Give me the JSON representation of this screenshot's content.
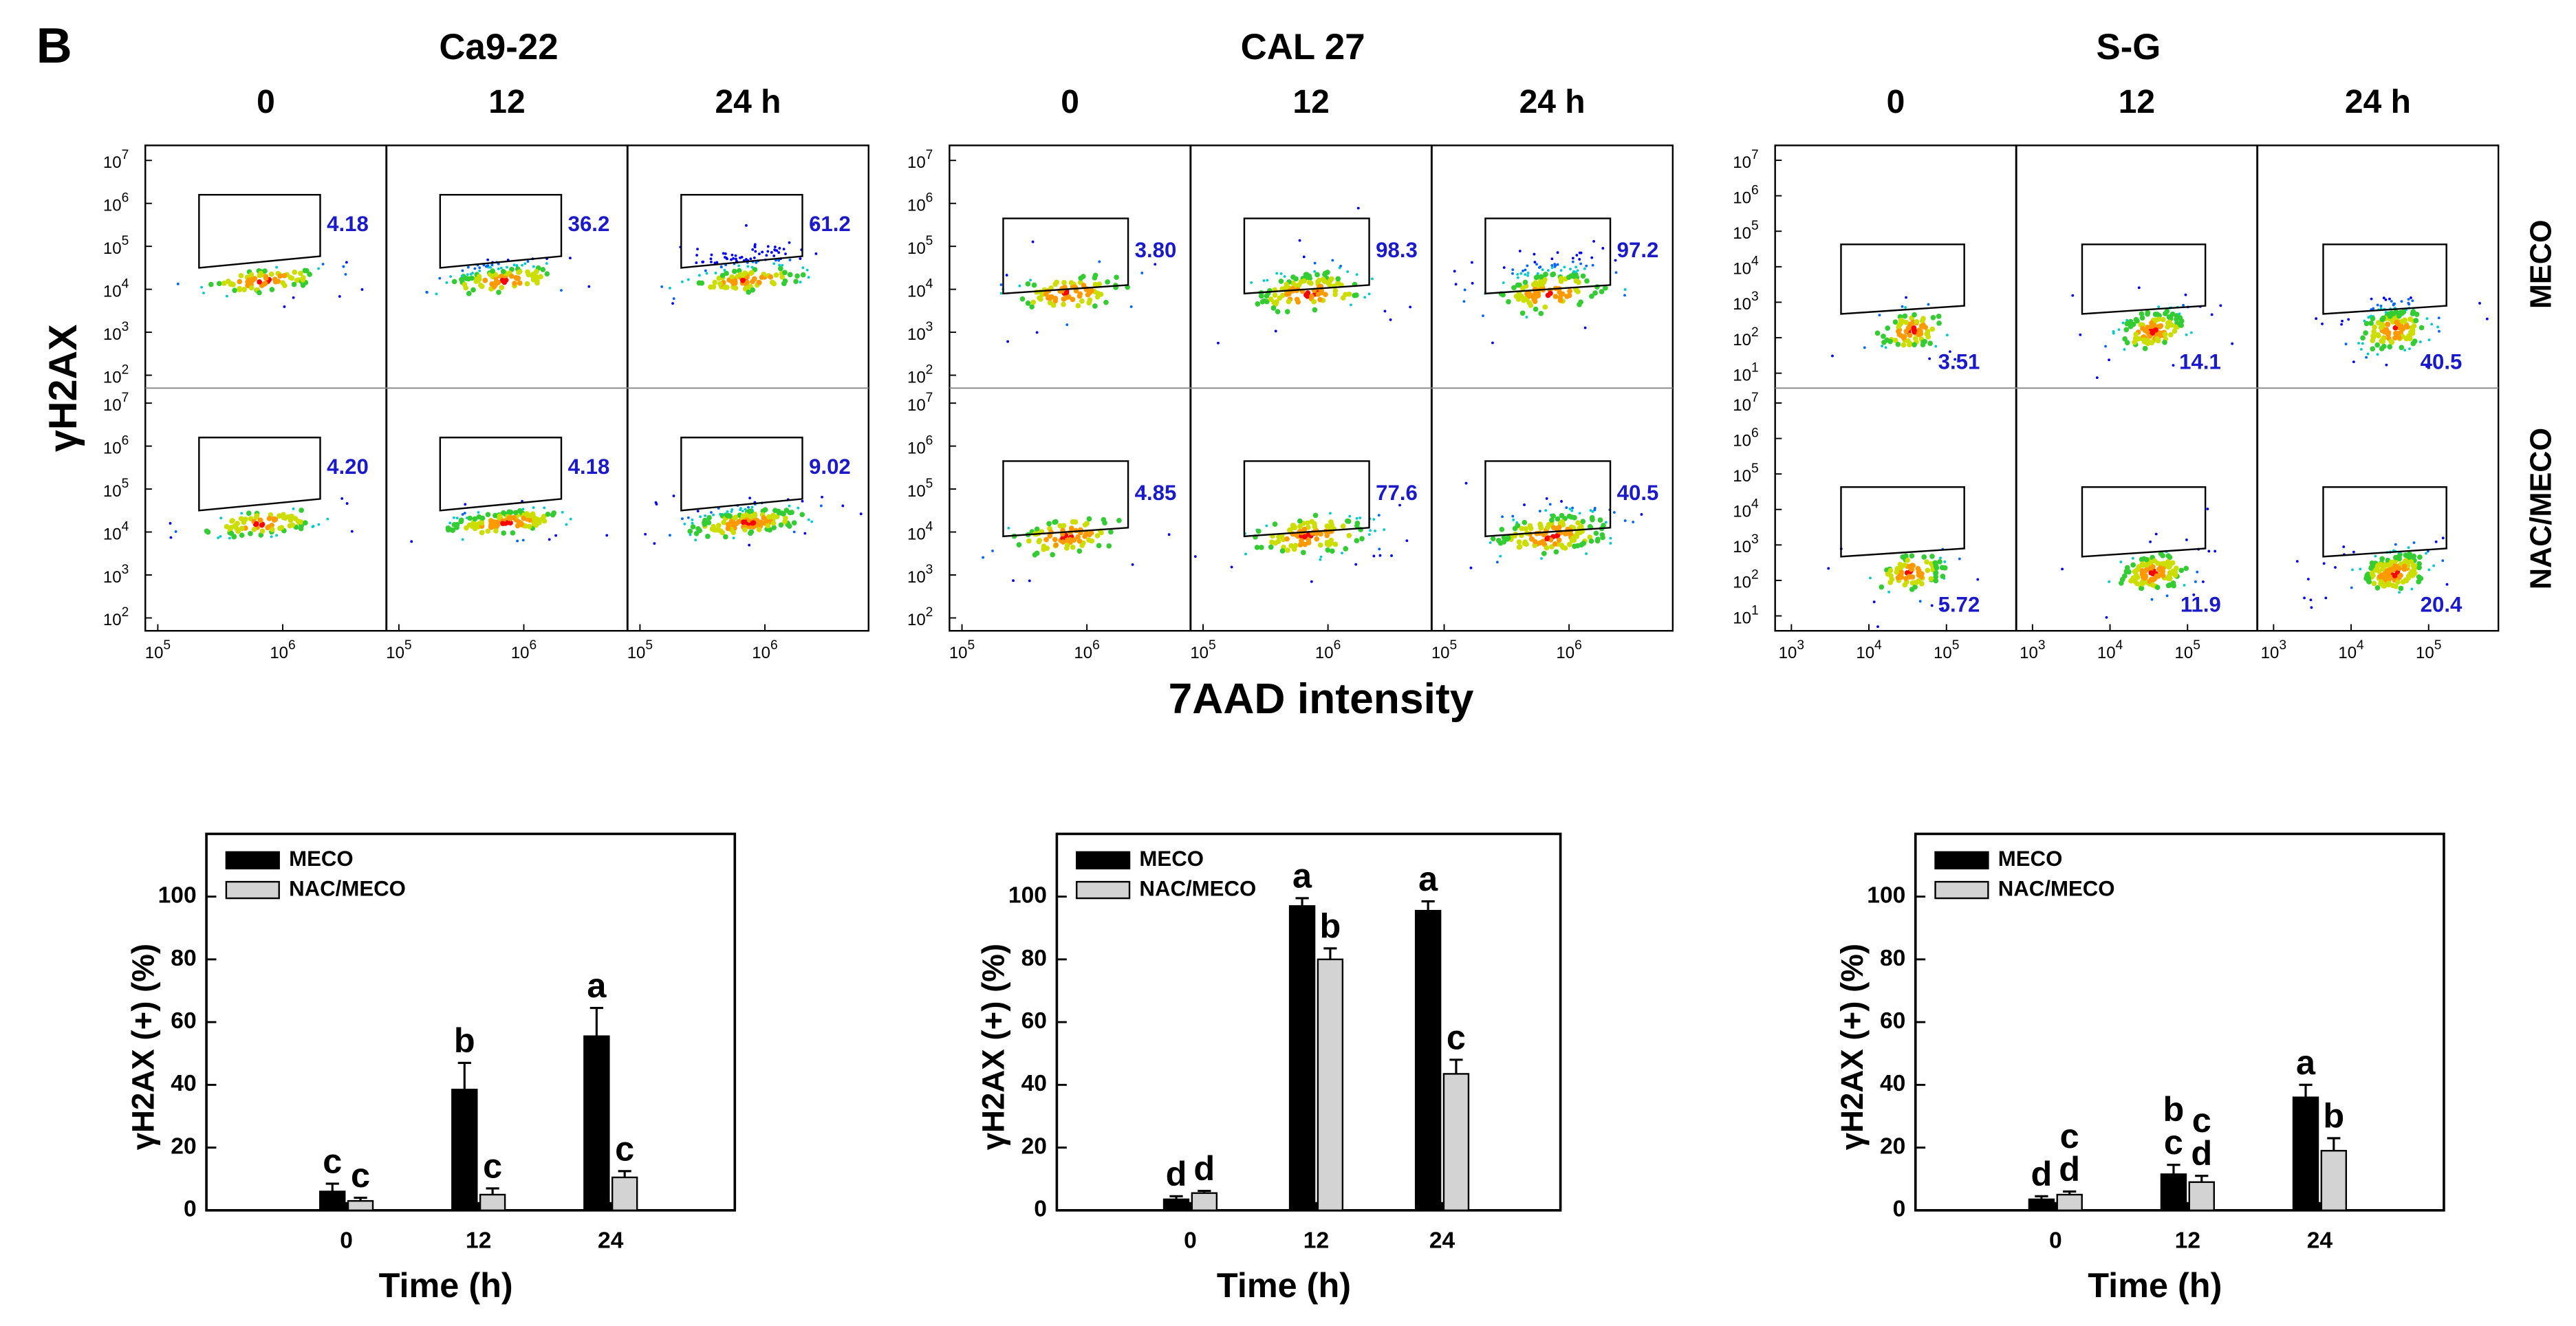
{
  "panel_label": "B",
  "y_axis_label": "γH2AX",
  "x_axis_label": "7AAD intensity",
  "row_labels": [
    "MECO",
    "NAC/MECO"
  ],
  "tick_base": "10",
  "flow_panels": [
    {
      "name": "Ca9-22",
      "time_labels": [
        "0",
        "12",
        "24 h"
      ],
      "xticks": [
        5,
        6
      ],
      "yticks": [
        2,
        3,
        4,
        5,
        6,
        7
      ],
      "xlim": [
        4.9,
        6.83
      ],
      "ylim": [
        1.7,
        7.35
      ],
      "gates": [
        [
          "4.18",
          "36.2",
          "61.2"
        ],
        [
          "4.20",
          "4.18",
          "9.02"
        ]
      ]
    },
    {
      "name": "CAL 27",
      "time_labels": [
        "0",
        "12",
        "24 h"
      ],
      "xticks": [
        5,
        6
      ],
      "yticks": [
        2,
        3,
        4,
        5,
        6,
        7
      ],
      "xlim": [
        4.9,
        6.83
      ],
      "ylim": [
        1.7,
        7.35
      ],
      "gates": [
        [
          "3.80",
          "98.3",
          "97.2"
        ],
        [
          "4.85",
          "77.6",
          "40.5"
        ]
      ]
    },
    {
      "name": "S-G",
      "time_labels": [
        "0",
        "12",
        "24 h"
      ],
      "xticks": [
        3,
        4,
        5
      ],
      "yticks": [
        1,
        2,
        3,
        4,
        5,
        6,
        7
      ],
      "xlim": [
        2.79,
        5.9
      ],
      "ylim": [
        0.58,
        7.42
      ],
      "gates": [
        [
          "3.51",
          "14.1",
          "40.5"
        ],
        [
          "5.72",
          "11.9",
          "20.4"
        ]
      ]
    }
  ],
  "chart_data": [
    {
      "type": "bar",
      "categories": [
        "0",
        "12",
        "24"
      ],
      "xlabel": "Time (h)",
      "ylabel": "γH2AX (+) (%)",
      "ylim": [
        0,
        120
      ],
      "yticks": [
        0,
        20,
        40,
        60,
        80,
        100
      ],
      "series": [
        {
          "name": "MECO",
          "color": "#000000",
          "values": [
            6,
            38.5,
            55.5
          ],
          "errors": [
            2.5,
            8.5,
            9
          ],
          "significance": [
            [
              "c"
            ],
            [
              "b"
            ],
            [
              "a"
            ]
          ]
        },
        {
          "name": "NAC/MECO",
          "color": "#d3d3d3",
          "values": [
            3,
            5,
            10.5
          ],
          "errors": [
            1,
            2,
            2
          ],
          "significance": [
            [
              "c"
            ],
            [
              "c"
            ],
            [
              "c"
            ]
          ]
        }
      ]
    },
    {
      "type": "bar",
      "categories": [
        "0",
        "12",
        "24"
      ],
      "xlabel": "Time (h)",
      "ylabel": "γH2AX (+) (%)",
      "ylim": [
        0,
        120
      ],
      "yticks": [
        0,
        20,
        40,
        60,
        80,
        100
      ],
      "series": [
        {
          "name": "MECO",
          "color": "#000000",
          "values": [
            3.5,
            97,
            95.5
          ],
          "errors": [
            1,
            2.5,
            3
          ],
          "significance": [
            [
              "d"
            ],
            [
              "a"
            ],
            [
              "a"
            ]
          ]
        },
        {
          "name": "NAC/MECO",
          "color": "#d3d3d3",
          "values": [
            5.5,
            80,
            43.5
          ],
          "errors": [
            0.7,
            3.5,
            4.5
          ],
          "significance": [
            [
              "d"
            ],
            [
              "b"
            ],
            [
              "c"
            ]
          ]
        }
      ]
    },
    {
      "type": "bar",
      "categories": [
        "0",
        "12",
        "24"
      ],
      "xlabel": "Time (h)",
      "ylabel": "γH2AX (+) (%)",
      "ylim": [
        0,
        120
      ],
      "yticks": [
        0,
        20,
        40,
        60,
        80,
        100
      ],
      "series": [
        {
          "name": "MECO",
          "color": "#000000",
          "values": [
            3.5,
            11.5,
            36
          ],
          "errors": [
            1,
            3,
            4
          ],
          "significance": [
            [
              "d"
            ],
            [
              "b",
              "c"
            ],
            [
              "a"
            ]
          ]
        },
        {
          "name": "NAC/MECO",
          "color": "#d3d3d3",
          "values": [
            5,
            9,
            19
          ],
          "errors": [
            1,
            2,
            4
          ],
          "significance": [
            [
              "c",
              "d"
            ],
            [
              "c",
              "d"
            ],
            [
              "b"
            ]
          ]
        }
      ]
    }
  ]
}
